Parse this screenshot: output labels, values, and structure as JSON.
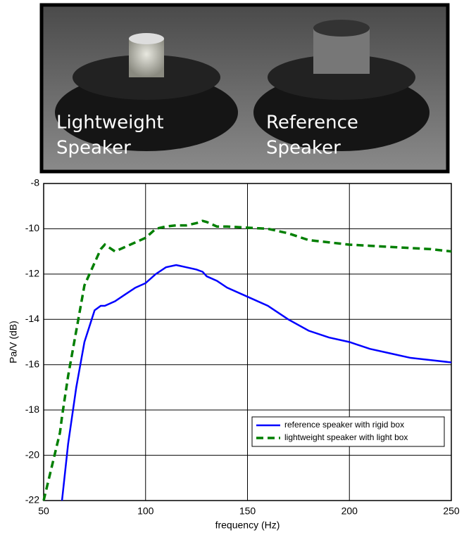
{
  "photo": {
    "labels": [
      {
        "lines": [
          "Lightweight",
          "Speaker"
        ]
      },
      {
        "lines": [
          "Reference",
          "Speaker"
        ]
      }
    ]
  },
  "chart_data": {
    "type": "line",
    "xlabel": "frequency (Hz)",
    "ylabel": "Pa/V (dB)",
    "x": [
      50,
      54,
      58,
      59,
      62,
      66,
      70,
      75,
      78,
      80,
      85,
      90,
      95,
      100,
      105,
      110,
      115,
      120,
      125,
      128,
      130,
      135,
      140,
      150,
      160,
      170,
      180,
      190,
      200,
      210,
      220,
      230,
      240,
      250
    ],
    "series": [
      {
        "name": "reference speaker with rigid box",
        "color": "#0000ff",
        "dashed": false,
        "values": [
          null,
          null,
          null,
          -22,
          -19.5,
          -17,
          -15,
          -13.6,
          -13.4,
          -13.4,
          -13.2,
          -12.9,
          -12.6,
          -12.4,
          -12.0,
          -11.7,
          -11.6,
          -11.7,
          -11.8,
          -11.9,
          -12.1,
          -12.3,
          -12.6,
          -13.0,
          -13.4,
          -14.0,
          -14.5,
          -14.8,
          -15.0,
          -15.3,
          -15.5,
          -15.7,
          -15.8,
          -15.9
        ]
      },
      {
        "name": "lightweight speaker with light box",
        "color": "#007f00",
        "dashed": true,
        "values": [
          -22,
          -20.5,
          -19,
          -18.3,
          -16.5,
          -14.5,
          -12.5,
          -11.5,
          -10.9,
          -10.7,
          -11.0,
          -10.8,
          -10.6,
          -10.4,
          -10.0,
          -9.9,
          -9.85,
          -9.85,
          -9.75,
          -9.65,
          -9.7,
          -9.9,
          -9.9,
          -9.95,
          -10.0,
          -10.2,
          -10.5,
          -10.6,
          -10.7,
          -10.75,
          -10.8,
          -10.85,
          -10.9,
          -11.0
        ]
      }
    ],
    "xlim": [
      50,
      250
    ],
    "xticks": [
      50,
      100,
      150,
      200,
      250
    ],
    "ylim": [
      -22,
      -8
    ],
    "yticks": [
      -22,
      -20,
      -18,
      -16,
      -14,
      -12,
      -10,
      -8
    ],
    "grid": true,
    "legend": "lower right"
  }
}
